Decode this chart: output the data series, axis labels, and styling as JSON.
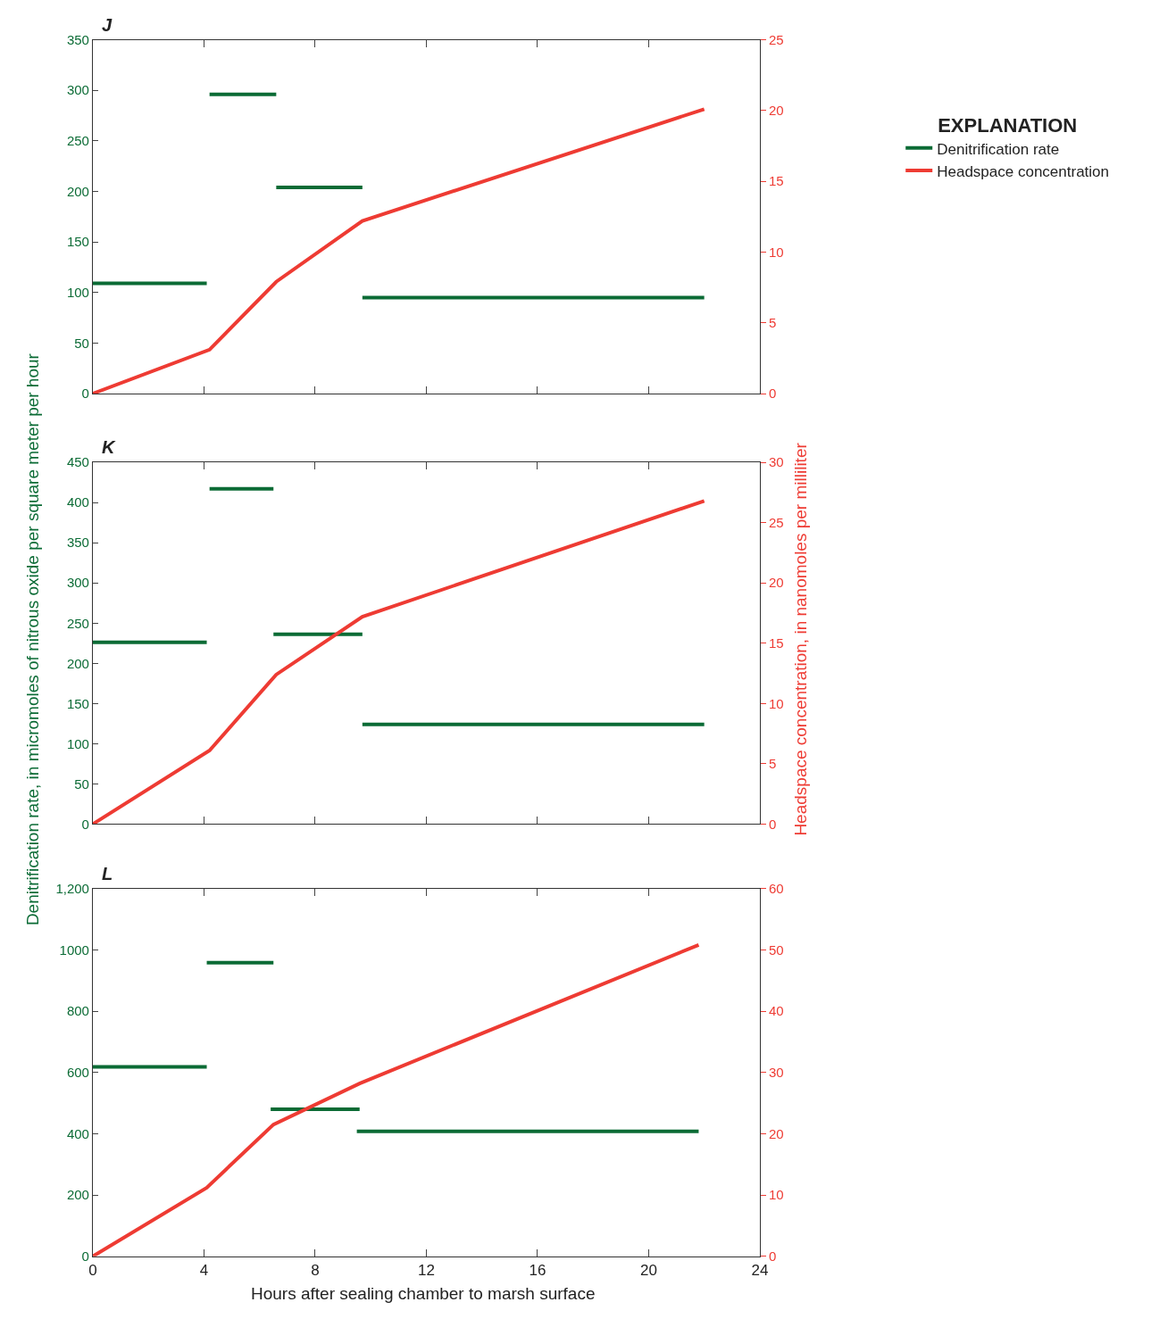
{
  "chart_data": [
    {
      "type": "line",
      "title": "J",
      "xlim": [
        0,
        24
      ],
      "xticks": [
        0,
        4,
        8,
        12,
        16,
        20,
        24
      ],
      "ylim": [
        0,
        350
      ],
      "yticks": [
        0,
        50,
        100,
        150,
        200,
        250,
        300,
        350
      ],
      "y2lim": [
        0,
        25
      ],
      "y2ticks": [
        0,
        5,
        10,
        15,
        20,
        25
      ],
      "tick_labels": "y",
      "legend": "right",
      "legend_title": "EXPLANATION",
      "series": [
        {
          "name": "Denitrification rate",
          "color": "#0b6b35",
          "x": [
            0,
            4.1,
            null,
            4.2,
            6.6,
            null,
            6.6,
            9.7,
            null,
            9.7,
            22
          ],
          "values": [
            109,
            109,
            null,
            296,
            296,
            null,
            204,
            204,
            null,
            95,
            95
          ]
        },
        {
          "name": "Headspace concentration",
          "color": "#ee3b33",
          "axis": "y2",
          "x": [
            0,
            4.2,
            6.6,
            9.7,
            22
          ],
          "values": [
            0,
            3.1,
            7.9,
            12.2,
            20.1
          ]
        }
      ]
    },
    {
      "type": "line",
      "title": "K",
      "ylabel": "Denitrification rate, in micromoles of nitrous oxide per square meter per hour",
      "y2label": "Headspace concentration, in nanomoles per milliliter",
      "xlim": [
        0,
        24
      ],
      "xticks": [
        0,
        4,
        8,
        12,
        16,
        20,
        24
      ],
      "ylim": [
        0,
        450
      ],
      "yticks": [
        0,
        50,
        100,
        150,
        200,
        250,
        300,
        350,
        400,
        450
      ],
      "y2lim": [
        0,
        30
      ],
      "y2ticks": [
        0,
        5,
        10,
        15,
        20,
        25,
        30
      ],
      "tick_labels": "y",
      "series": [
        {
          "color": "#0b6b35",
          "x": [
            0,
            4.1,
            null,
            4.2,
            6.5,
            null,
            6.5,
            9.7,
            null,
            9.7,
            22
          ],
          "values": [
            226,
            226,
            null,
            417,
            417,
            null,
            236,
            236,
            null,
            124,
            124
          ]
        },
        {
          "color": "#ee3b33",
          "axis": "y2",
          "x": [
            0,
            4.2,
            6.6,
            9.7,
            22
          ],
          "values": [
            0,
            6.1,
            12.4,
            17.2,
            26.8
          ]
        }
      ]
    },
    {
      "type": "line",
      "title": "L",
      "xlabel": "Hours after sealing chamber to marsh surface",
      "xlim": [
        0,
        24
      ],
      "xticks": [
        0,
        4,
        8,
        12,
        16,
        20,
        24
      ],
      "ylim": [
        0,
        1200
      ],
      "yticks": [
        0,
        200,
        400,
        600,
        800,
        1000,
        {
          "value": 1200,
          "label": "1,200"
        }
      ],
      "y2lim": [
        0,
        60
      ],
      "y2ticks": [
        0,
        10,
        20,
        30,
        40,
        50,
        60
      ],
      "series": [
        {
          "color": "#0b6b35",
          "x": [
            0,
            4.1,
            null,
            4.1,
            6.5,
            null,
            6.4,
            9.6,
            null,
            9.5,
            21.8
          ],
          "values": [
            618,
            618,
            null,
            958,
            958,
            null,
            480,
            480,
            null,
            408,
            408
          ]
        },
        {
          "color": "#ee3b33",
          "axis": "y2",
          "x": [
            0,
            4.1,
            6.5,
            9.6,
            21.8
          ],
          "values": [
            0,
            11.2,
            21.5,
            28.2,
            50.8
          ]
        }
      ]
    }
  ]
}
